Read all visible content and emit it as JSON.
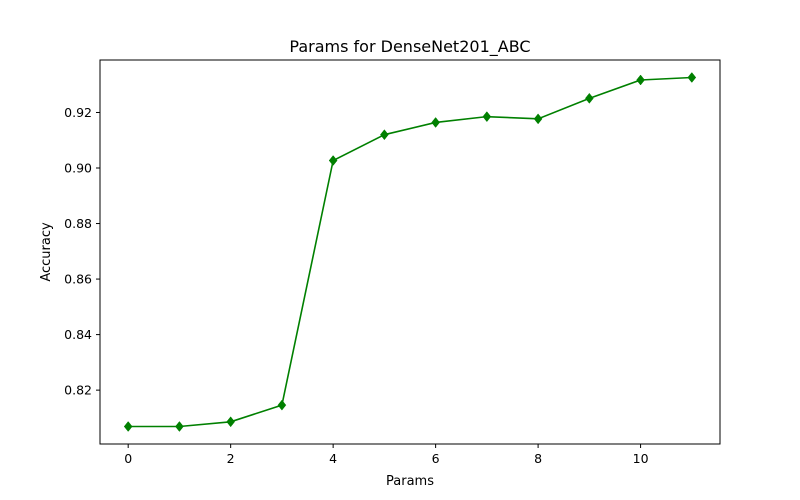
{
  "chart_data": {
    "type": "line",
    "title": "Params for DenseNet201_ABC",
    "xlabel": "Params",
    "ylabel": "Accuracy",
    "x": [
      0,
      1,
      2,
      3,
      4,
      5,
      6,
      7,
      8,
      9,
      10,
      11
    ],
    "series": [
      {
        "values": [
          0.8069,
          0.8069,
          0.8086,
          0.8146,
          0.9027,
          0.912,
          0.9164,
          0.9185,
          0.9177,
          0.9251,
          0.9317,
          0.9326
        ],
        "color": "#008000",
        "marker": "diamond"
      }
    ],
    "xlim": [
      -0.55,
      11.55
    ],
    "ylim": [
      0.8006,
      0.9389
    ],
    "xticks": [
      0,
      2,
      4,
      6,
      8,
      10
    ],
    "yticks": [
      0.82,
      0.84,
      0.86,
      0.88,
      0.9,
      0.92
    ],
    "xtick_labels": [
      "0",
      "2",
      "4",
      "6",
      "8",
      "10"
    ],
    "ytick_labels": [
      "0.82",
      "0.84",
      "0.86",
      "0.88",
      "0.90",
      "0.92"
    ],
    "grid": false,
    "legend": "none"
  }
}
